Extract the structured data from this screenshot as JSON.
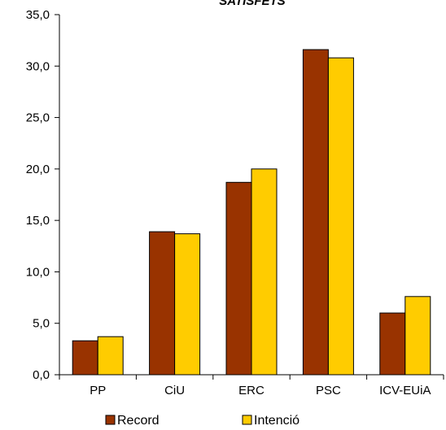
{
  "chart_data": {
    "type": "bar",
    "title": "SATISFETS",
    "xlabel": "",
    "ylabel": "",
    "categories": [
      "PP",
      "CiU",
      "ERC",
      "PSC",
      "ICV-EUiA"
    ],
    "series": [
      {
        "name": "Record",
        "color": "#993300",
        "values": [
          3.3,
          13.9,
          18.7,
          31.6,
          6.0
        ]
      },
      {
        "name": "Intenció",
        "color": "#FFCC00",
        "values": [
          3.7,
          13.7,
          20.0,
          30.8,
          7.6
        ]
      }
    ],
    "ylim": [
      0,
      35
    ],
    "yticks": [
      "0,0",
      "5,0",
      "10,0",
      "15,0",
      "20,0",
      "25,0",
      "30,0",
      "35,0"
    ],
    "ytick_values": [
      0,
      5,
      10,
      15,
      20,
      25,
      30,
      35
    ],
    "grid": false,
    "legend_position": "bottom"
  }
}
